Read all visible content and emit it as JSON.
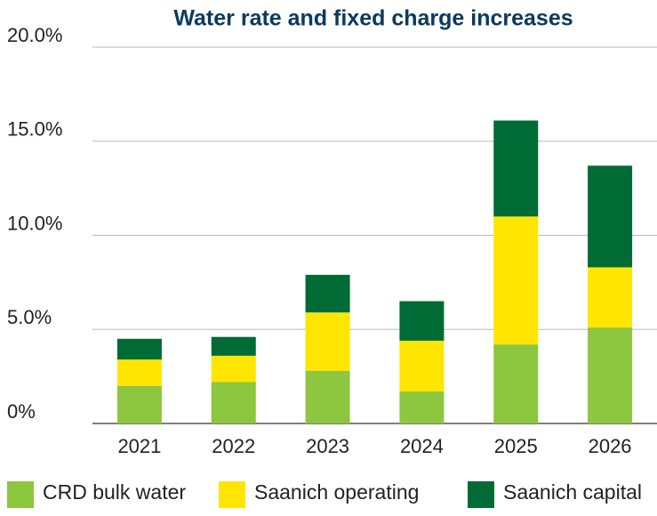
{
  "chart_data": {
    "type": "stacked_bar",
    "title": "Water rate and fixed charge increases",
    "categories": [
      "2021",
      "2022",
      "2023",
      "2024",
      "2025",
      "2026"
    ],
    "series": [
      {
        "name": "CRD bulk water",
        "color": "#8dc63f",
        "values": [
          2.0,
          2.2,
          2.8,
          1.7,
          4.2,
          5.1
        ]
      },
      {
        "name": "Saanich operating",
        "color": "#ffe500",
        "values": [
          1.4,
          1.4,
          3.1,
          2.7,
          6.8,
          3.2
        ]
      },
      {
        "name": "Saanich capital",
        "color": "#006b35",
        "values": [
          1.1,
          1.0,
          2.0,
          2.1,
          5.1,
          5.4
        ]
      }
    ],
    "ylim": [
      0,
      20
    ],
    "yticks": [
      {
        "value": 0,
        "label": "0%"
      },
      {
        "value": 5,
        "label": "5.0%"
      },
      {
        "value": 10,
        "label": "10.0%"
      },
      {
        "value": 15,
        "label": "15.0%"
      },
      {
        "value": 20,
        "label": "20.0%"
      }
    ],
    "grid": true,
    "legend": "bottom"
  }
}
